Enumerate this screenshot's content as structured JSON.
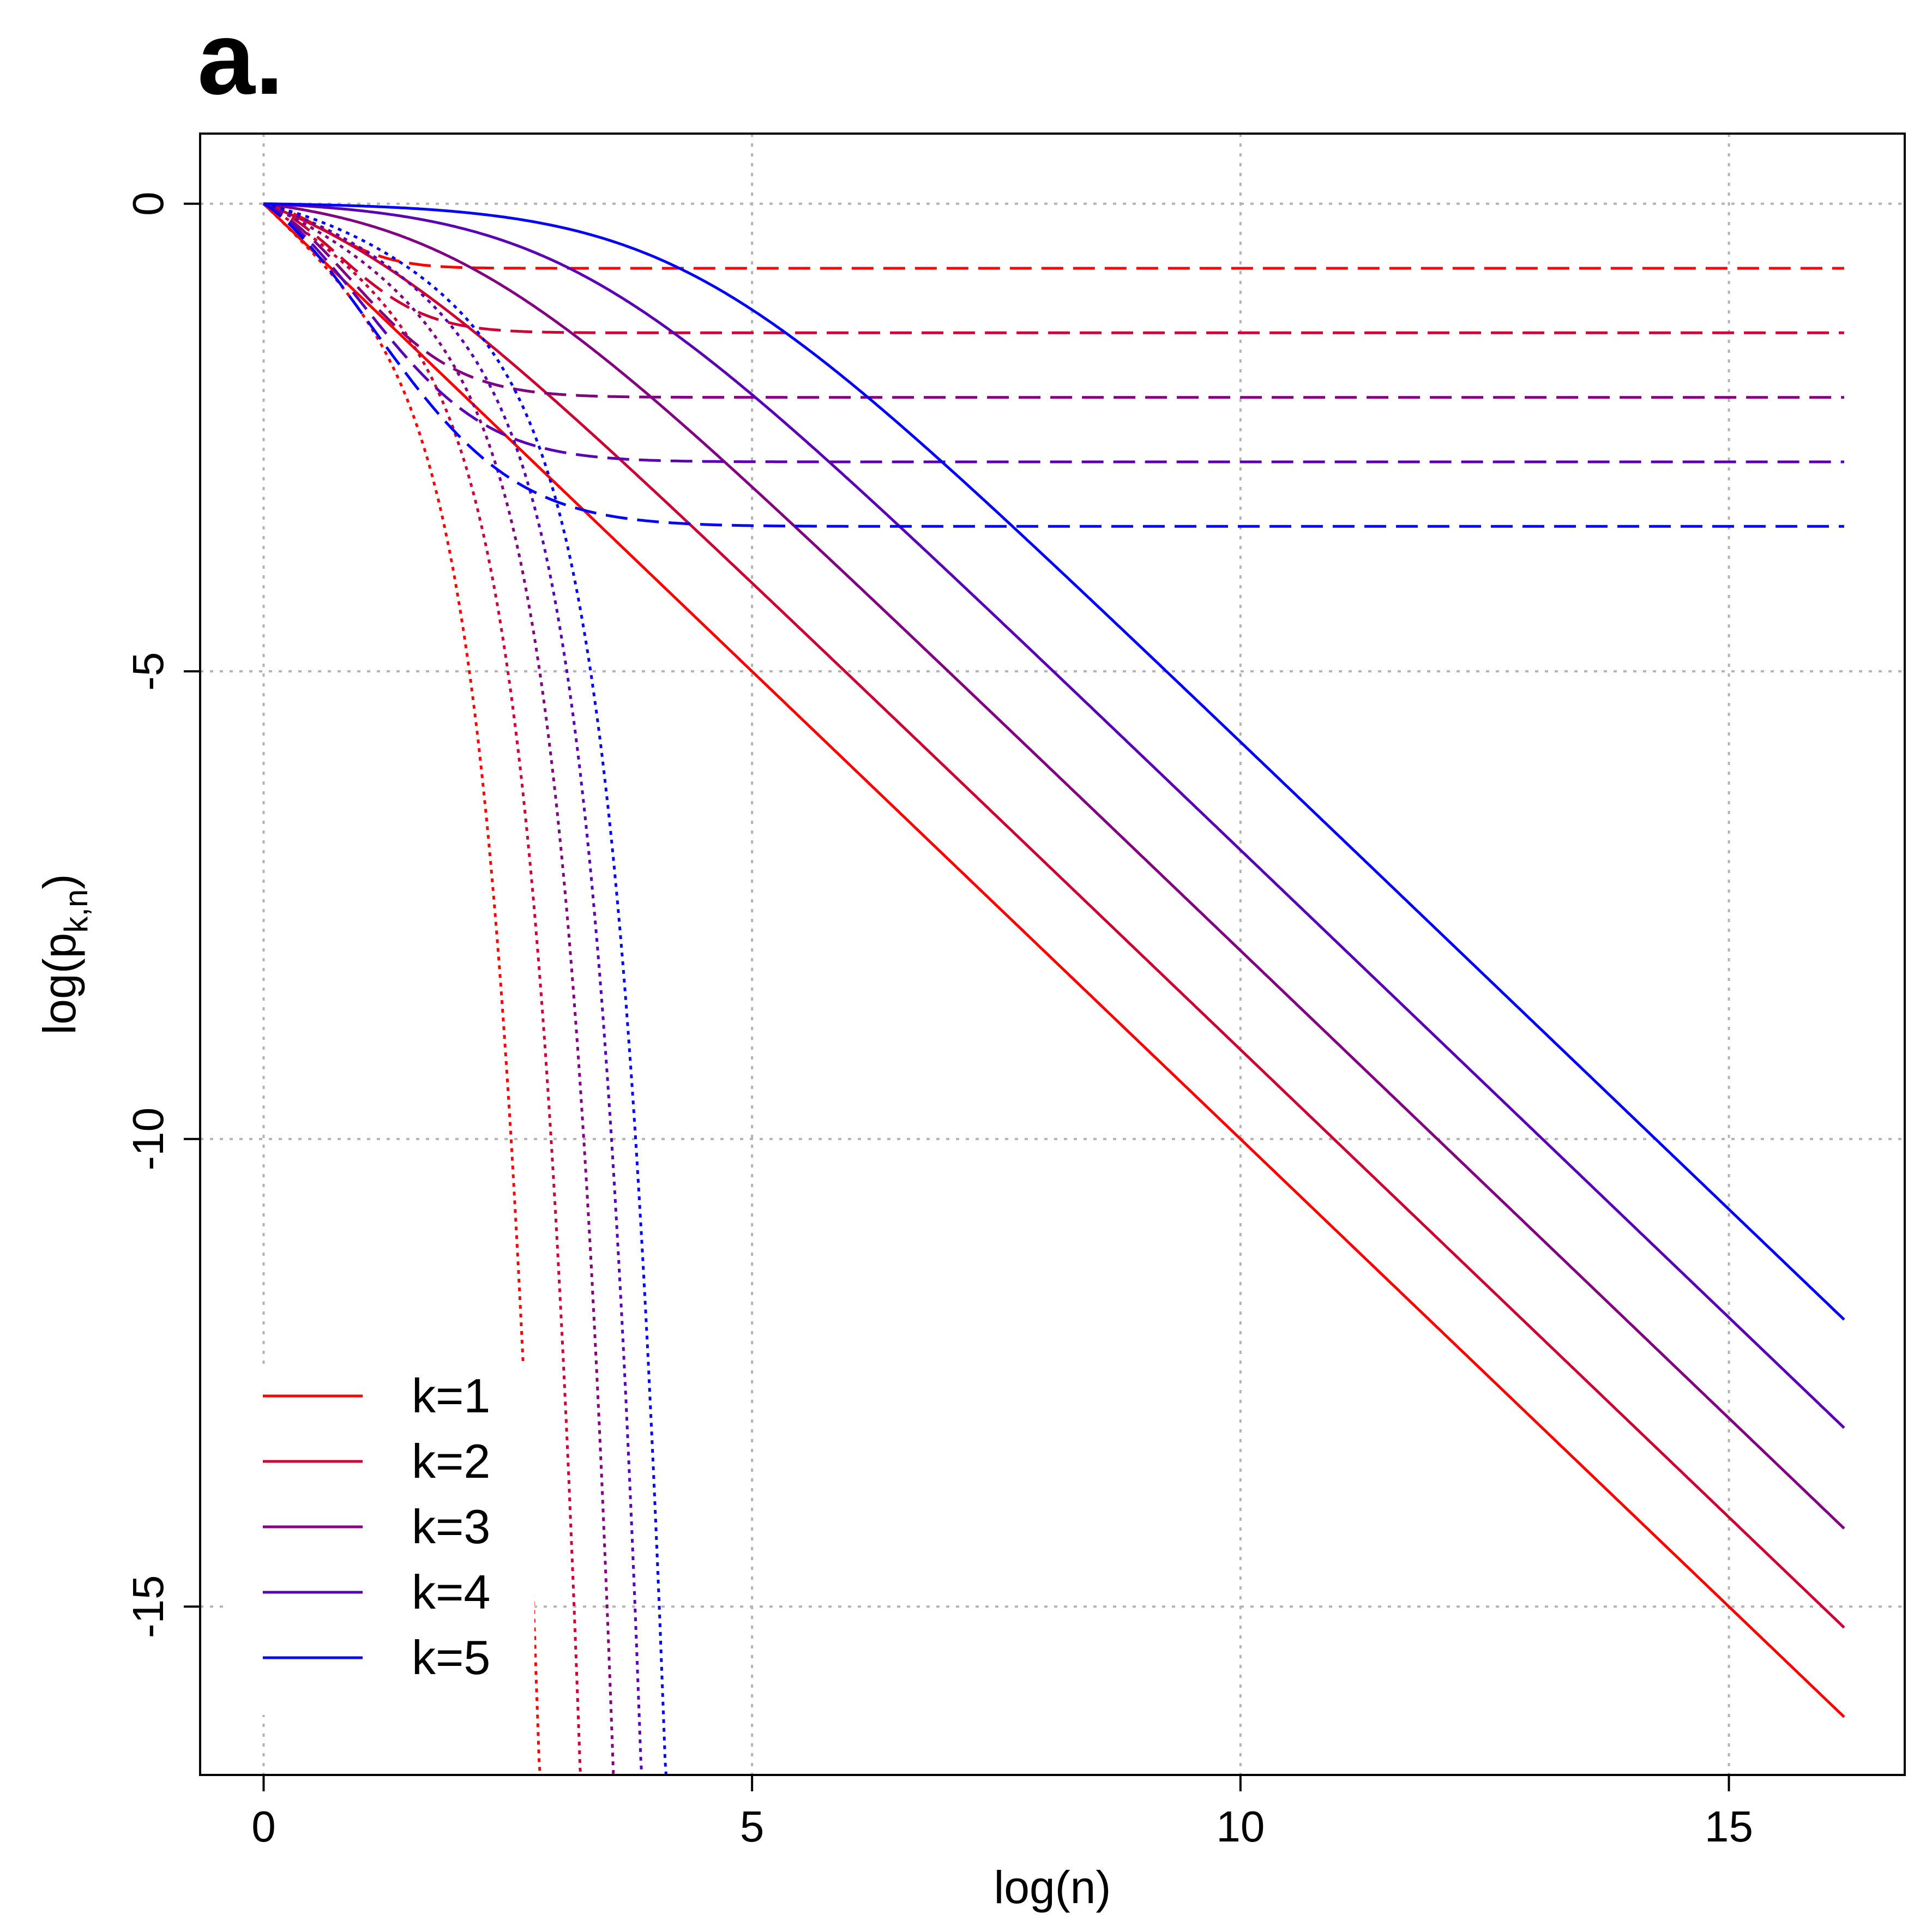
{
  "panel_label": "a.",
  "chart_data": {
    "type": "line",
    "title": "",
    "xlabel": "log(n)",
    "ylabel_main": "log(p",
    "ylabel_sub": "k,n",
    "ylabel_close": ")",
    "xlim": [
      -0.65,
      16.8
    ],
    "ylim": [
      -16.8,
      0.75
    ],
    "xticks": [
      0,
      5,
      10,
      15
    ],
    "xtick_labels": [
      "0",
      "5",
      "10",
      "15"
    ],
    "yticks": [
      0,
      -5,
      -10,
      -15
    ],
    "ytick_labels": [
      "0",
      "-5",
      "-10",
      "-15"
    ],
    "grid": true,
    "legend_position": "bottom-left",
    "x_max": 16.18,
    "alpha": 0.5,
    "dash_styles": {
      "solid": "solid",
      "dashed": "dashed",
      "dotted": "dotted"
    },
    "series": [
      {
        "name": "k=1",
        "k": 1,
        "color": "#FF0000"
      },
      {
        "name": "k=2",
        "k": 2,
        "color": "#CC0033"
      },
      {
        "name": "k=3",
        "k": 3,
        "color": "#800080"
      },
      {
        "name": "k=4",
        "k": 4,
        "color": "#5A00B4"
      },
      {
        "name": "k=5",
        "k": 5,
        "color": "#0000FF"
      }
    ]
  }
}
